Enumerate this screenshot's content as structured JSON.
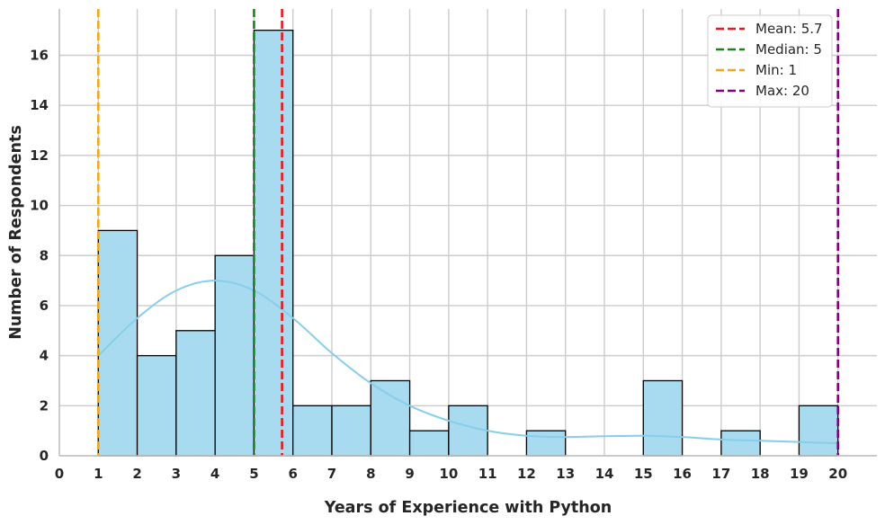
{
  "chart_data": {
    "type": "bar",
    "subtype": "histogram with kde",
    "bin_edges": [
      1,
      2,
      3,
      4,
      5,
      6,
      7,
      8,
      9,
      10,
      11,
      12,
      13,
      14,
      15,
      16,
      17,
      18,
      19,
      20
    ],
    "counts": [
      9,
      4,
      5,
      8,
      17,
      2,
      2,
      3,
      1,
      2,
      0,
      1,
      0,
      0,
      3,
      0,
      1,
      0,
      2
    ],
    "kde": {
      "x": [
        1,
        2,
        3,
        4,
        5,
        6,
        7,
        8,
        9,
        10,
        11,
        12,
        13,
        14,
        15,
        16,
        17,
        18,
        19,
        20
      ],
      "y": [
        4.0,
        5.5,
        6.6,
        7.0,
        6.6,
        5.5,
        4.1,
        2.9,
        2.0,
        1.4,
        1.0,
        0.8,
        0.75,
        0.78,
        0.8,
        0.75,
        0.65,
        0.6,
        0.55,
        0.5
      ]
    },
    "vlines": [
      {
        "label": "Mean: 5.7",
        "x": 5.72,
        "color": "#e8191e"
      },
      {
        "label": "Median: 5",
        "x": 5,
        "color": "#178417"
      },
      {
        "label": "Min: 1",
        "x": 1,
        "color": "#f2a71b"
      },
      {
        "label": "Max: 20",
        "x": 20,
        "color": "#800080"
      }
    ],
    "xlabel": "Years of Experience with Python",
    "ylabel": "Number of Respondents",
    "xlim": [
      0,
      21
    ],
    "ylim": [
      0,
      17.85
    ],
    "xticks": [
      0,
      1,
      2,
      3,
      4,
      5,
      6,
      7,
      8,
      9,
      10,
      11,
      12,
      13,
      14,
      15,
      16,
      17,
      18,
      19,
      20
    ],
    "yticks": [
      0,
      2,
      4,
      6,
      8,
      10,
      12,
      14,
      16
    ],
    "grid": true,
    "legend_position": "top-right",
    "bar_color": "#a8dbef",
    "bar_edge_color": "#000000",
    "kde_color": "#87ceeb"
  }
}
